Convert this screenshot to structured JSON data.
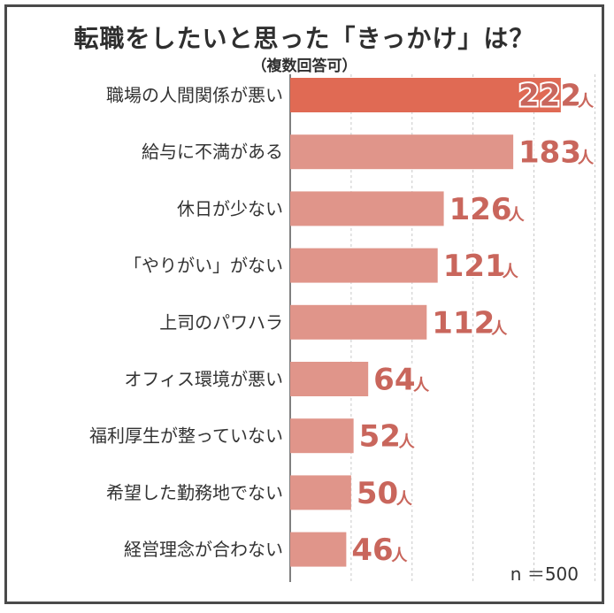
{
  "chart_data": {
    "type": "bar",
    "orientation": "horizontal",
    "title": "転職をしたいと思った「きっかけ」は？",
    "subtitle": "（複数回答可）",
    "categories": [
      "職場の人間関係が悪い",
      "給与に不満がある",
      "休日が少ない",
      "「やりがい」がない",
      "上司のパワハラ",
      "オフィス環境が悪い",
      "福利厚生が整っていない",
      "希望した勤務地でない",
      "経営理念が合わない"
    ],
    "values": [
      222,
      183,
      126,
      121,
      112,
      64,
      52,
      50,
      46
    ],
    "unit": "人",
    "xlim": [
      0,
      250
    ],
    "grid": "vertical-dashed",
    "note": "n ＝500",
    "colors": {
      "highlight_bar": "#e06a54",
      "bar": "#e0958a",
      "value_text": "#c9665c",
      "grid": "#c8c8c8"
    }
  }
}
